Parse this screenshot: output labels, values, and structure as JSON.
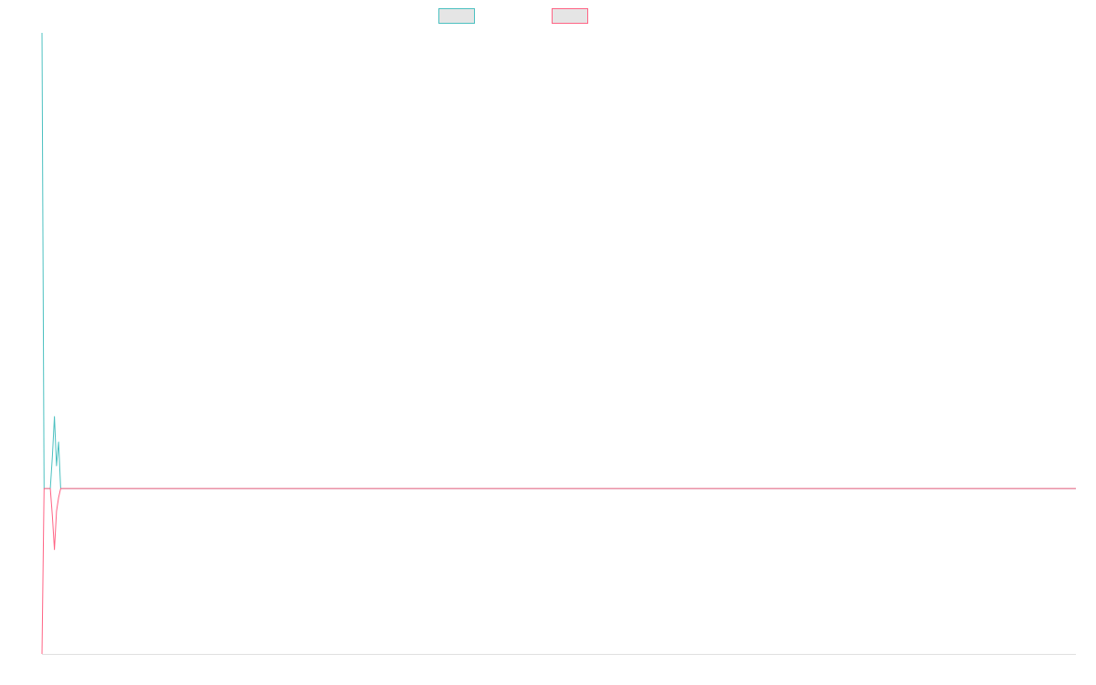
{
  "chart_data": {
    "type": "line",
    "title": "",
    "xlabel": "",
    "ylabel": "",
    "ylim": [
      -0.363,
      1.0
    ],
    "grid": false,
    "legend": "top-center",
    "series": [
      {
        "color": "#4bc0c0",
        "values": [
          1.0,
          0,
          0,
          0,
          0,
          0.07,
          0.158,
          0.05,
          0.102,
          0,
          0,
          0,
          0,
          0,
          0,
          0,
          0,
          0,
          0,
          0,
          0,
          0,
          0,
          0,
          0,
          0,
          0,
          0,
          0,
          0,
          0,
          0,
          0,
          0,
          0,
          0,
          0,
          0,
          0,
          0,
          0,
          0,
          0,
          0,
          0,
          0,
          0,
          0,
          0,
          0,
          0,
          0,
          0,
          0,
          0,
          0,
          0,
          0,
          0,
          0,
          0,
          0,
          0,
          0,
          0,
          0,
          0,
          0,
          0,
          0,
          0,
          0,
          0,
          0,
          0,
          0,
          0,
          0,
          0,
          0,
          0,
          0,
          0,
          0,
          0,
          0,
          0,
          0,
          0,
          0,
          0,
          0,
          0,
          0,
          0,
          0,
          0,
          0,
          0,
          0,
          0,
          0,
          0,
          0,
          0,
          0,
          0,
          0,
          0,
          0,
          0,
          0,
          0,
          0,
          0,
          0,
          0,
          0,
          0,
          0,
          0,
          0,
          0,
          0,
          0,
          0,
          0,
          0,
          0,
          0,
          0,
          0,
          0,
          0,
          0,
          0,
          0,
          0,
          0,
          0,
          0,
          0,
          0,
          0,
          0,
          0,
          0,
          0,
          0,
          0,
          0,
          0,
          0,
          0,
          0,
          0,
          0,
          0,
          0,
          0,
          0,
          0,
          0,
          0,
          0,
          0,
          0,
          0,
          0,
          0,
          0,
          0,
          0,
          0,
          0,
          0,
          0,
          0,
          0,
          0,
          0,
          0,
          0,
          0,
          0,
          0,
          0,
          0,
          0,
          0,
          0,
          0,
          0,
          0,
          0,
          0,
          0,
          0,
          0,
          0,
          0,
          0,
          0,
          0,
          0,
          0,
          0,
          0,
          0,
          0,
          0,
          0,
          0,
          0,
          0,
          0,
          0,
          0,
          0,
          0,
          0,
          0,
          0,
          0,
          0,
          0,
          0,
          0,
          0,
          0,
          0,
          0,
          0,
          0,
          0,
          0,
          0,
          0,
          0,
          0,
          0,
          0,
          0,
          0,
          0,
          0,
          0,
          0,
          0,
          0,
          0,
          0,
          0,
          0,
          0,
          0,
          0,
          0,
          0,
          0,
          0,
          0,
          0,
          0,
          0,
          0,
          0,
          0,
          0,
          0,
          0,
          0,
          0,
          0,
          0,
          0,
          0,
          0,
          0,
          0,
          0,
          0,
          0,
          0,
          0,
          0,
          0,
          0,
          0,
          0,
          0,
          0,
          0,
          0,
          0,
          0,
          0,
          0,
          0,
          0,
          0,
          0,
          0,
          0,
          0,
          0,
          0,
          0,
          0,
          0,
          0,
          0,
          0,
          0,
          0,
          0,
          0,
          0,
          0,
          0,
          0,
          0,
          0,
          0,
          0,
          0,
          0,
          0,
          0,
          0,
          0,
          0,
          0,
          0,
          0,
          0,
          0,
          0,
          0,
          0,
          0,
          0,
          0,
          0,
          0,
          0,
          0,
          0,
          0,
          0,
          0,
          0,
          0,
          0,
          0,
          0,
          0,
          0,
          0,
          0,
          0,
          0,
          0,
          0,
          0,
          0,
          0,
          0,
          0,
          0,
          0,
          0,
          0,
          0,
          0,
          0,
          0,
          0,
          0,
          0,
          0,
          0,
          0,
          0,
          0,
          0,
          0,
          0,
          0,
          0,
          0,
          0,
          0,
          0,
          0,
          0,
          0,
          0,
          0,
          0,
          0,
          0,
          0,
          0,
          0,
          0,
          0,
          0,
          0,
          0,
          0,
          0,
          0,
          0,
          0,
          0,
          0,
          0,
          0,
          0,
          0,
          0,
          0,
          0,
          0,
          0,
          0,
          0,
          0,
          0,
          0,
          0,
          0,
          0,
          0,
          0,
          0,
          0,
          0,
          0,
          0,
          0,
          0,
          0,
          0,
          0,
          0,
          0,
          0,
          0,
          0,
          0,
          0,
          0,
          0,
          0,
          0,
          0,
          0,
          0,
          0,
          0,
          0,
          0,
          0,
          0,
          0,
          0,
          0,
          0,
          0,
          0,
          0,
          0,
          0,
          0,
          0,
          0,
          0,
          0,
          0,
          0,
          0,
          0,
          0,
          0,
          0,
          0,
          0,
          0,
          0,
          0,
          0,
          0,
          0,
          0,
          0,
          0,
          0,
          0
        ]
      },
      {
        "color": "#ff6384",
        "values": [
          -0.363,
          0,
          0,
          0,
          0,
          -0.06,
          -0.134,
          -0.05,
          -0.02,
          0,
          0,
          0,
          0,
          0,
          0,
          0,
          0,
          0,
          0,
          0,
          0,
          0,
          0,
          0,
          0,
          0,
          0,
          0,
          0,
          0,
          0,
          0,
          0,
          0,
          0,
          0,
          0,
          0,
          0,
          0,
          0,
          0,
          0,
          0,
          0,
          0,
          0,
          0,
          0,
          0,
          0,
          0,
          0,
          0,
          0,
          0,
          0,
          0,
          0,
          0,
          0,
          0,
          0,
          0,
          0,
          0,
          0,
          0,
          0,
          0,
          0,
          0,
          0,
          0,
          0,
          0,
          0,
          0,
          0,
          0,
          0,
          0,
          0,
          0,
          0,
          0,
          0,
          0,
          0,
          0,
          0,
          0,
          0,
          0,
          0,
          0,
          0,
          0,
          0,
          0,
          0,
          0,
          0,
          0,
          0,
          0,
          0,
          0,
          0,
          0,
          0,
          0,
          0,
          0,
          0,
          0,
          0,
          0,
          0,
          0,
          0,
          0,
          0,
          0,
          0,
          0,
          0,
          0,
          0,
          0,
          0,
          0,
          0,
          0,
          0,
          0,
          0,
          0,
          0,
          0,
          0,
          0,
          0,
          0,
          0,
          0,
          0,
          0,
          0,
          0,
          0,
          0,
          0,
          0,
          0,
          0,
          0,
          0,
          0,
          0,
          0,
          0,
          0,
          0,
          0,
          0,
          0,
          0,
          0,
          0,
          0,
          0,
          0,
          0,
          0,
          0,
          0,
          0,
          0,
          0,
          0,
          0,
          0,
          0,
          0,
          0,
          0,
          0,
          0,
          0,
          0,
          0,
          0,
          0,
          0,
          0,
          0,
          0,
          0,
          0,
          0,
          0,
          0,
          0,
          0,
          0,
          0,
          0,
          0,
          0,
          0,
          0,
          0,
          0,
          0,
          0,
          0,
          0,
          0,
          0,
          0,
          0,
          0,
          0,
          0,
          0,
          0,
          0,
          0,
          0,
          0,
          0,
          0,
          0,
          0,
          0,
          0,
          0,
          0,
          0,
          0,
          0,
          0,
          0,
          0,
          0,
          0,
          0,
          0,
          0,
          0,
          0,
          0,
          0,
          0,
          0,
          0,
          0,
          0,
          0,
          0,
          0,
          0,
          0,
          0,
          0,
          0,
          0,
          0,
          0,
          0,
          0,
          0,
          0,
          0,
          0,
          0,
          0,
          0,
          0,
          0,
          0,
          0,
          0,
          0,
          0,
          0,
          0,
          0,
          0,
          0,
          0,
          0,
          0,
          0,
          0,
          0,
          0,
          0,
          0,
          0,
          0,
          0,
          0,
          0,
          0,
          0,
          0,
          0,
          0,
          0,
          0,
          0,
          0,
          0,
          0,
          0,
          0,
          0,
          0,
          0,
          0,
          0,
          0,
          0,
          0,
          0,
          0,
          0,
          0,
          0,
          0,
          0,
          0,
          0,
          0,
          0,
          0,
          0,
          0,
          0,
          0,
          0,
          0,
          0,
          0,
          0,
          0,
          0,
          0,
          0,
          0,
          0,
          0,
          0,
          0,
          0,
          0,
          0,
          0,
          0,
          0,
          0,
          0,
          0,
          0,
          0,
          0,
          0,
          0,
          0,
          0,
          0,
          0,
          0,
          0,
          0,
          0,
          0,
          0,
          0,
          0,
          0,
          0,
          0,
          0,
          0,
          0,
          0,
          0,
          0,
          0,
          0,
          0,
          0,
          0,
          0,
          0,
          0,
          0,
          0,
          0,
          0,
          0,
          0,
          0,
          0,
          0,
          0,
          0,
          0,
          0,
          0,
          0,
          0,
          0,
          0,
          0,
          0,
          0,
          0,
          0,
          0,
          0,
          0,
          0,
          0,
          0,
          0,
          0,
          0,
          0,
          0,
          0,
          0,
          0,
          0,
          0,
          0,
          0,
          0,
          0,
          0,
          0,
          0,
          0,
          0,
          0,
          0,
          0,
          0,
          0,
          0,
          0,
          0,
          0,
          0,
          0,
          0,
          0,
          0,
          0,
          0,
          0,
          0,
          0,
          0,
          0,
          0,
          0,
          0,
          0,
          0,
          0,
          0,
          0,
          0,
          0,
          0,
          0,
          0,
          0,
          0,
          0,
          0,
          0,
          0,
          0,
          0,
          0,
          0,
          0,
          0,
          0,
          0,
          0,
          0,
          0,
          0,
          0
        ]
      }
    ],
    "legend_box_fill": "#e5e5e5"
  }
}
